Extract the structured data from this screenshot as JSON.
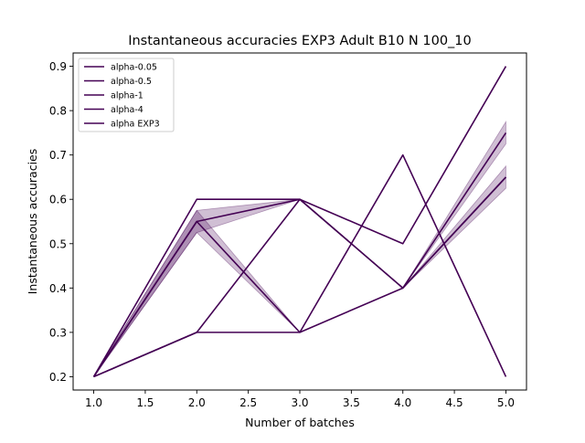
{
  "chart_data": {
    "type": "line",
    "title": "Instantaneous accuracies EXP3 Adult B10 N 100_10",
    "xlabel": "Number of batches",
    "ylabel": "Instantaneous accuracies",
    "xlim": [
      0.8,
      5.2
    ],
    "ylim": [
      0.17,
      0.93
    ],
    "xticks": [
      1.0,
      1.5,
      2.0,
      2.5,
      3.0,
      3.5,
      4.0,
      4.5,
      5.0
    ],
    "xtick_labels": [
      "1.0",
      "1.5",
      "2.0",
      "2.5",
      "3.0",
      "3.5",
      "4.0",
      "4.5",
      "5.0"
    ],
    "yticks": [
      0.2,
      0.3,
      0.4,
      0.5,
      0.6,
      0.7,
      0.8,
      0.9
    ],
    "ytick_labels": [
      "0.2",
      "0.3",
      "0.4",
      "0.5",
      "0.6",
      "0.7",
      "0.8",
      "0.9"
    ],
    "grid": false,
    "legend_placement": "top-left",
    "line_color": "#440154",
    "band_color": "#440154",
    "x": [
      1,
      2,
      3,
      4,
      5
    ],
    "series": [
      {
        "name": "alpha-0.05",
        "values": [
          0.2,
          0.55,
          0.6,
          0.4,
          0.65
        ],
        "band_low": [
          0.2,
          0.525,
          0.6,
          0.4,
          0.625
        ],
        "band_high": [
          0.2,
          0.575,
          0.6,
          0.4,
          0.675
        ]
      },
      {
        "name": "alpha-0.5",
        "values": [
          0.2,
          0.55,
          0.3,
          0.4,
          0.75
        ],
        "band_low": [
          0.2,
          0.525,
          0.3,
          0.4,
          0.725
        ],
        "band_high": [
          0.2,
          0.575,
          0.3,
          0.4,
          0.775
        ]
      },
      {
        "name": "alpha-1",
        "values": [
          0.2,
          0.6,
          0.6,
          0.4,
          0.65
        ]
      },
      {
        "name": "alpha-4",
        "values": [
          0.2,
          0.3,
          0.6,
          0.5,
          0.9
        ]
      },
      {
        "name": "alpha EXP3",
        "values": [
          0.2,
          0.3,
          0.3,
          0.7,
          0.2
        ]
      }
    ]
  }
}
